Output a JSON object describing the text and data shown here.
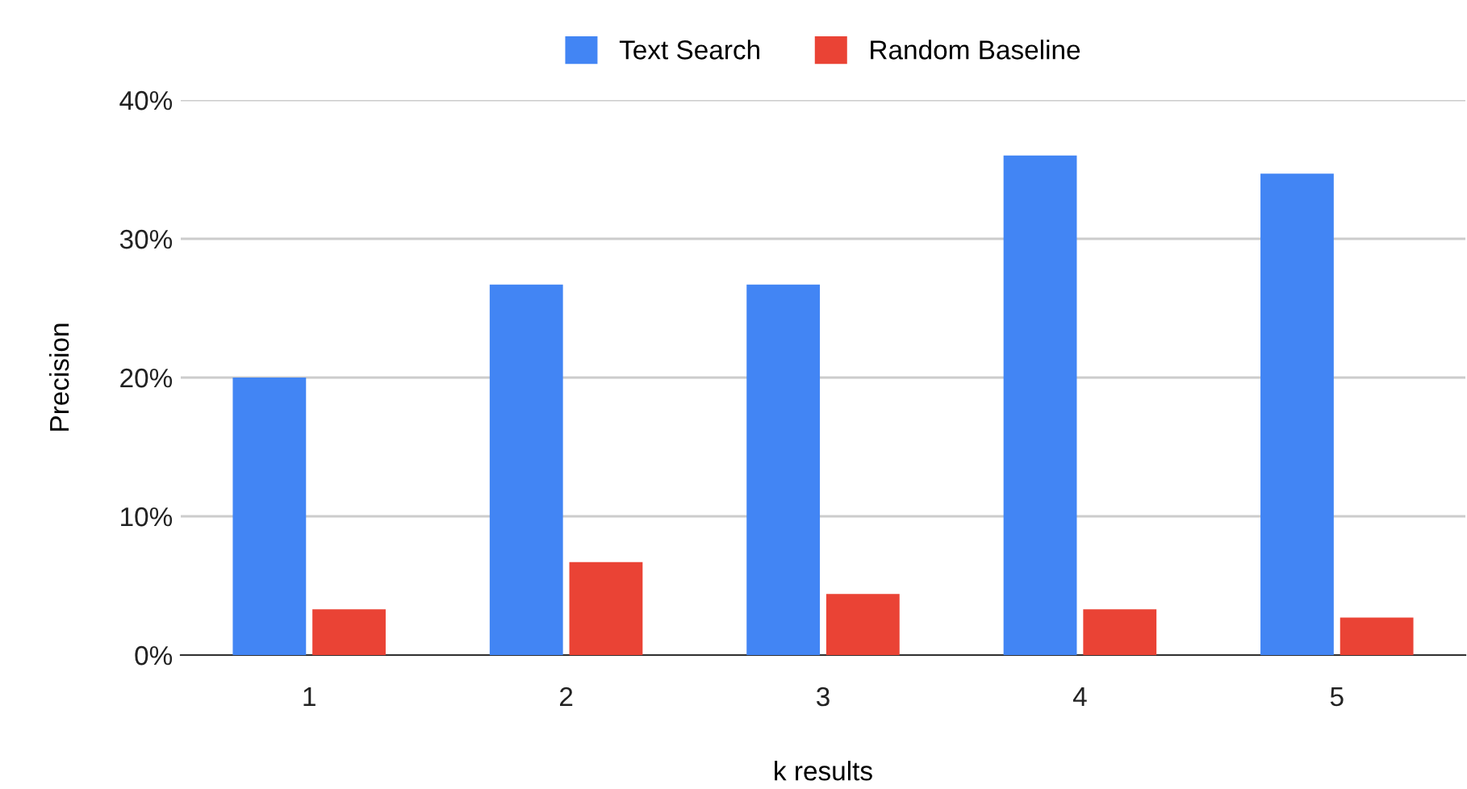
{
  "chart_data": {
    "type": "bar",
    "xlabel": "k results",
    "ylabel": "Precision",
    "categories": [
      "1",
      "2",
      "3",
      "4",
      "5"
    ],
    "series": [
      {
        "name": "Text Search",
        "color": "#4285f4",
        "values": [
          20.0,
          26.7,
          26.7,
          36.0,
          34.7
        ]
      },
      {
        "name": "Random Baseline",
        "color": "#ea4335",
        "values": [
          3.3,
          6.7,
          4.4,
          3.3,
          2.7
        ]
      }
    ],
    "ylim": [
      0,
      40
    ],
    "yticks": [
      {
        "value": 0,
        "label": "0%"
      },
      {
        "value": 10,
        "label": "10%"
      },
      {
        "value": 20,
        "label": "20%"
      },
      {
        "value": 30,
        "label": "30%"
      },
      {
        "value": 40,
        "label": "40%"
      }
    ],
    "grid": "y",
    "legend": "top"
  }
}
